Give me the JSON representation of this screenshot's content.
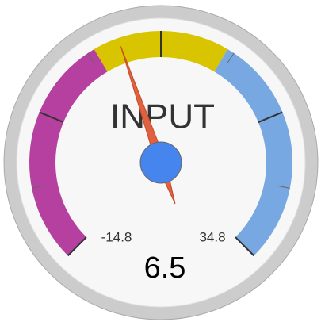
{
  "chart_data": {
    "type": "gauge",
    "label": "INPUT",
    "value": 6.5,
    "min": -14.8,
    "max": 34.8,
    "bands": [
      {
        "from": -14.8,
        "to": 4.4,
        "color": "#b5409f"
      },
      {
        "from": 4.4,
        "to": 15.6,
        "color": "#d9c400"
      },
      {
        "from": 15.6,
        "to": 34.8,
        "color": "#78a8e2"
      }
    ],
    "major_ticks": 4,
    "minor_ticks": 2,
    "needle_color": "#e0603f",
    "hub_color": "#4684ee"
  }
}
